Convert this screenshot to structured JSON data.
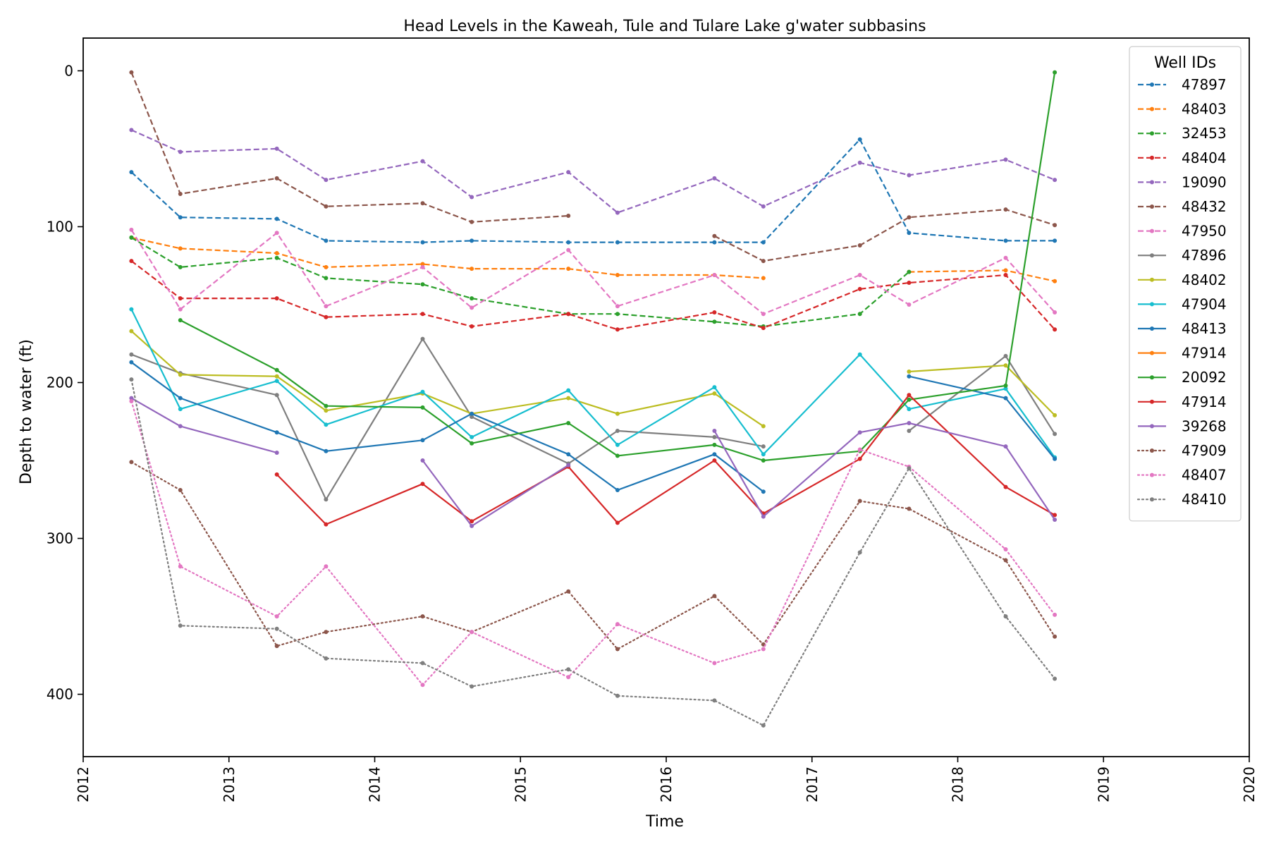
{
  "chart_data": {
    "type": "line",
    "title": "Head Levels in the Kaweah, Tule and Tulare Lake g'water subbasins",
    "xlabel": "Time",
    "ylabel": "Depth to water (ft)",
    "xlim": [
      "2012-01-01",
      "2020-01-01"
    ],
    "ylim": [
      440,
      -21
    ],
    "y_inverted": true,
    "grid": false,
    "legend": {
      "title": "Well IDs",
      "placement": "top-right"
    },
    "x_tick_labels": [
      "2012",
      "2013",
      "2014",
      "2015",
      "2016",
      "2017",
      "2018",
      "2019",
      "2020"
    ],
    "y_tick_labels": [
      "0",
      "100",
      "200",
      "300",
      "400"
    ],
    "series": [
      {
        "name": "47897",
        "color": "#1f77b4",
        "linestyle": "dashed",
        "points": [
          [
            "2012-05-01",
            65
          ],
          [
            "2012-09-01",
            94
          ],
          [
            "2013-05-01",
            95
          ],
          [
            "2013-09-01",
            109
          ],
          [
            "2014-05-01",
            110
          ],
          [
            "2014-09-01",
            109
          ],
          [
            "2015-05-01",
            110
          ],
          [
            "2015-09-01",
            110
          ],
          [
            "2016-05-01",
            110
          ],
          [
            "2016-09-01",
            110
          ],
          [
            "2017-05-01",
            44
          ],
          [
            "2017-09-01",
            104
          ],
          [
            "2018-05-01",
            109
          ],
          [
            "2018-09-01",
            109
          ]
        ]
      },
      {
        "name": "48403",
        "color": "#ff7f0e",
        "linestyle": "dashed",
        "points": [
          [
            "2012-05-01",
            107
          ],
          [
            "2012-09-01",
            114
          ],
          [
            "2013-05-01",
            117
          ],
          [
            "2013-09-01",
            126
          ],
          [
            "2014-05-01",
            124
          ],
          [
            "2014-09-01",
            127
          ],
          [
            "2015-05-01",
            127
          ],
          [
            "2015-09-01",
            131
          ],
          [
            "2016-05-01",
            131
          ],
          [
            "2016-09-01",
            133
          ],
          null,
          [
            "2017-09-01",
            129
          ],
          [
            "2018-05-01",
            128
          ],
          [
            "2018-09-01",
            135
          ]
        ]
      },
      {
        "name": "32453",
        "color": "#2ca02c",
        "linestyle": "dashed",
        "points": [
          [
            "2012-05-01",
            107
          ],
          [
            "2012-09-01",
            126
          ],
          [
            "2013-05-01",
            120
          ],
          [
            "2013-09-01",
            133
          ],
          [
            "2014-05-01",
            137
          ],
          [
            "2014-09-01",
            146
          ],
          [
            "2015-05-01",
            156
          ],
          [
            "2015-09-01",
            156
          ],
          [
            "2016-05-01",
            161
          ],
          [
            "2016-09-01",
            164
          ],
          [
            "2017-05-01",
            156
          ],
          [
            "2017-09-01",
            129
          ]
        ]
      },
      {
        "name": "48404",
        "color": "#d62728",
        "linestyle": "dashed",
        "points": [
          [
            "2012-05-01",
            122
          ],
          [
            "2012-09-01",
            146
          ],
          [
            "2013-05-01",
            146
          ],
          [
            "2013-09-01",
            158
          ],
          [
            "2014-05-01",
            156
          ],
          [
            "2014-09-01",
            164
          ],
          [
            "2015-05-01",
            156
          ],
          [
            "2015-09-01",
            166
          ],
          [
            "2016-05-01",
            155
          ],
          [
            "2016-09-01",
            165
          ],
          [
            "2017-05-01",
            140
          ],
          [
            "2017-09-01",
            136
          ],
          [
            "2018-05-01",
            131
          ],
          [
            "2018-09-01",
            166
          ]
        ]
      },
      {
        "name": "19090",
        "color": "#9467bd",
        "linestyle": "dashed",
        "points": [
          [
            "2012-05-01",
            38
          ],
          [
            "2012-09-01",
            52
          ],
          [
            "2013-05-01",
            50
          ],
          [
            "2013-09-01",
            70
          ],
          [
            "2014-05-01",
            58
          ],
          [
            "2014-09-01",
            81
          ],
          [
            "2015-05-01",
            65
          ],
          [
            "2015-09-01",
            91
          ],
          [
            "2016-05-01",
            69
          ],
          [
            "2016-09-01",
            87
          ],
          [
            "2017-05-01",
            59
          ],
          [
            "2017-09-01",
            67
          ],
          [
            "2018-05-01",
            57
          ],
          [
            "2018-09-01",
            70
          ]
        ]
      },
      {
        "name": "48432",
        "color": "#8c564b",
        "linestyle": "dashed",
        "points": [
          [
            "2012-05-01",
            1
          ],
          [
            "2012-09-01",
            79
          ],
          [
            "2013-05-01",
            69
          ],
          [
            "2013-09-01",
            87
          ],
          [
            "2014-05-01",
            85
          ],
          [
            "2014-09-01",
            97
          ],
          [
            "2015-05-01",
            93
          ],
          null,
          [
            "2016-05-01",
            106
          ],
          [
            "2016-09-01",
            122
          ],
          [
            "2017-05-01",
            112
          ],
          [
            "2017-09-01",
            94
          ],
          [
            "2018-05-01",
            89
          ],
          [
            "2018-09-01",
            99
          ]
        ]
      },
      {
        "name": "47950",
        "color": "#e377c2",
        "linestyle": "dashed",
        "points": [
          [
            "2012-05-01",
            102
          ],
          [
            "2012-09-01",
            153
          ],
          [
            "2013-05-01",
            104
          ],
          [
            "2013-09-01",
            151
          ],
          [
            "2014-05-01",
            126
          ],
          [
            "2014-09-01",
            152
          ],
          [
            "2015-05-01",
            115
          ],
          [
            "2015-09-01",
            151
          ],
          [
            "2016-05-01",
            131
          ],
          [
            "2016-09-01",
            156
          ],
          [
            "2017-05-01",
            131
          ],
          [
            "2017-09-01",
            150
          ],
          [
            "2018-05-01",
            120
          ],
          [
            "2018-09-01",
            155
          ]
        ]
      },
      {
        "name": "47896",
        "color": "#7f7f7f",
        "linestyle": "solid",
        "points": [
          [
            "2012-05-01",
            182
          ],
          [
            "2012-09-01",
            194
          ],
          [
            "2013-05-01",
            208
          ],
          [
            "2013-09-01",
            275
          ],
          [
            "2014-05-01",
            172
          ],
          [
            "2014-09-01",
            222
          ],
          [
            "2015-05-01",
            252
          ],
          [
            "2015-09-01",
            231
          ],
          [
            "2016-05-01",
            235
          ],
          [
            "2016-09-01",
            241
          ],
          null,
          [
            "2017-09-01",
            231
          ],
          [
            "2018-05-01",
            183
          ],
          [
            "2018-09-01",
            233
          ]
        ]
      },
      {
        "name": "48402",
        "color": "#bcbd22",
        "linestyle": "solid",
        "points": [
          [
            "2012-05-01",
            167
          ],
          [
            "2012-09-01",
            195
          ],
          [
            "2013-05-01",
            196
          ],
          [
            "2013-09-01",
            218
          ],
          [
            "2014-05-01",
            207
          ],
          [
            "2014-09-01",
            220
          ],
          [
            "2015-05-01",
            210
          ],
          [
            "2015-09-01",
            220
          ],
          [
            "2016-05-01",
            207
          ],
          [
            "2016-09-01",
            228
          ],
          null,
          [
            "2017-09-01",
            193
          ],
          [
            "2018-05-01",
            189
          ],
          [
            "2018-09-01",
            221
          ]
        ]
      },
      {
        "name": "47904",
        "color": "#17becf",
        "linestyle": "solid",
        "points": [
          [
            "2012-05-01",
            153
          ],
          [
            "2012-09-01",
            217
          ],
          [
            "2013-05-01",
            199
          ],
          [
            "2013-09-01",
            227
          ],
          [
            "2014-05-01",
            206
          ],
          [
            "2014-09-01",
            235
          ],
          [
            "2015-05-01",
            205
          ],
          [
            "2015-09-01",
            240
          ],
          [
            "2016-05-01",
            203
          ],
          [
            "2016-09-01",
            246
          ],
          [
            "2017-05-01",
            182
          ],
          [
            "2017-09-01",
            217
          ],
          [
            "2018-05-01",
            204
          ],
          [
            "2018-09-01",
            248
          ]
        ]
      },
      {
        "name": "48413",
        "color": "#1f77b4",
        "linestyle": "solid",
        "points": [
          [
            "2012-05-01",
            187
          ],
          [
            "2012-09-01",
            210
          ],
          [
            "2013-05-01",
            232
          ],
          [
            "2013-09-01",
            244
          ],
          [
            "2014-05-01",
            237
          ],
          [
            "2014-09-01",
            220
          ],
          [
            "2015-05-01",
            246
          ],
          [
            "2015-09-01",
            269
          ],
          [
            "2016-05-01",
            246
          ],
          [
            "2016-09-01",
            270
          ],
          null,
          [
            "2017-09-01",
            196
          ],
          [
            "2018-05-01",
            210
          ],
          [
            "2018-09-01",
            249
          ]
        ]
      },
      {
        "name": "47914",
        "color": "#ff7f0e",
        "linestyle": "solid",
        "points": []
      },
      {
        "name": "20092",
        "color": "#2ca02c",
        "linestyle": "solid",
        "points": [
          [
            "2012-05-01",
            107
          ],
          null,
          [
            "2012-09-01",
            160
          ],
          [
            "2013-05-01",
            192
          ],
          [
            "2013-09-01",
            215
          ],
          [
            "2014-05-01",
            216
          ],
          [
            "2014-09-01",
            239
          ],
          [
            "2015-05-01",
            226
          ],
          [
            "2015-09-01",
            247
          ],
          [
            "2016-05-01",
            240
          ],
          [
            "2016-09-01",
            250
          ],
          [
            "2017-05-01",
            244
          ],
          [
            "2017-09-01",
            211
          ],
          [
            "2018-05-01",
            202
          ],
          [
            "2018-09-01",
            1
          ]
        ]
      },
      {
        "name": "47914",
        "color": "#d62728",
        "linestyle": "solid",
        "points": [
          [
            "2013-05-01",
            259
          ],
          [
            "2013-09-01",
            291
          ],
          [
            "2014-05-01",
            265
          ],
          [
            "2014-09-01",
            289
          ],
          [
            "2015-05-01",
            254
          ],
          [
            "2015-09-01",
            290
          ],
          [
            "2016-05-01",
            250
          ],
          [
            "2016-09-01",
            284
          ],
          [
            "2017-05-01",
            249
          ],
          [
            "2017-09-01",
            208
          ],
          [
            "2018-05-01",
            267
          ],
          [
            "2018-09-01",
            285
          ]
        ]
      },
      {
        "name": "39268",
        "color": "#9467bd",
        "linestyle": "solid",
        "points": [
          [
            "2012-05-01",
            210
          ],
          [
            "2012-09-01",
            228
          ],
          [
            "2013-05-01",
            245
          ],
          null,
          [
            "2014-05-01",
            250
          ],
          [
            "2014-09-01",
            292
          ],
          [
            "2015-05-01",
            253
          ],
          null,
          [
            "2016-05-01",
            231
          ],
          [
            "2016-09-01",
            286
          ],
          [
            "2017-05-01",
            232
          ],
          [
            "2017-09-01",
            226
          ],
          [
            "2018-05-01",
            241
          ],
          [
            "2018-09-01",
            288
          ]
        ]
      },
      {
        "name": "47909",
        "color": "#8c564b",
        "linestyle": "dotted",
        "points": [
          [
            "2012-05-01",
            251
          ],
          [
            "2012-09-01",
            269
          ],
          [
            "2013-05-01",
            369
          ],
          [
            "2013-09-01",
            360
          ],
          [
            "2014-05-01",
            350
          ],
          [
            "2014-09-01",
            360
          ],
          [
            "2015-05-01",
            334
          ],
          [
            "2015-09-01",
            371
          ],
          [
            "2016-05-01",
            337
          ],
          [
            "2016-09-01",
            368
          ],
          [
            "2017-05-01",
            276
          ],
          [
            "2017-09-01",
            281
          ],
          [
            "2018-05-01",
            314
          ],
          [
            "2018-09-01",
            363
          ]
        ]
      },
      {
        "name": "48407",
        "color": "#e377c2",
        "linestyle": "dotted",
        "points": [
          [
            "2012-05-01",
            212
          ],
          [
            "2012-09-01",
            318
          ],
          [
            "2013-05-01",
            350
          ],
          [
            "2013-09-01",
            318
          ],
          [
            "2014-05-01",
            394
          ],
          [
            "2014-09-01",
            360
          ],
          [
            "2015-05-01",
            389
          ],
          [
            "2015-09-01",
            355
          ],
          [
            "2016-05-01",
            380
          ],
          [
            "2016-09-01",
            371
          ],
          [
            "2017-05-01",
            243
          ],
          [
            "2017-09-01",
            254
          ],
          [
            "2018-05-01",
            307
          ],
          [
            "2018-09-01",
            349
          ]
        ]
      },
      {
        "name": "48410",
        "color": "#7f7f7f",
        "linestyle": "dotted",
        "points": [
          [
            "2012-05-01",
            198
          ],
          [
            "2012-09-01",
            356
          ],
          [
            "2013-05-01",
            358
          ],
          [
            "2013-09-01",
            377
          ],
          [
            "2014-05-01",
            380
          ],
          [
            "2014-09-01",
            395
          ],
          [
            "2015-05-01",
            384
          ],
          [
            "2015-09-01",
            401
          ],
          [
            "2016-05-01",
            404
          ],
          [
            "2016-09-01",
            420
          ],
          [
            "2017-05-01",
            309
          ],
          [
            "2017-09-01",
            255
          ],
          [
            "2018-05-01",
            350
          ],
          [
            "2018-09-01",
            390
          ]
        ]
      }
    ]
  }
}
